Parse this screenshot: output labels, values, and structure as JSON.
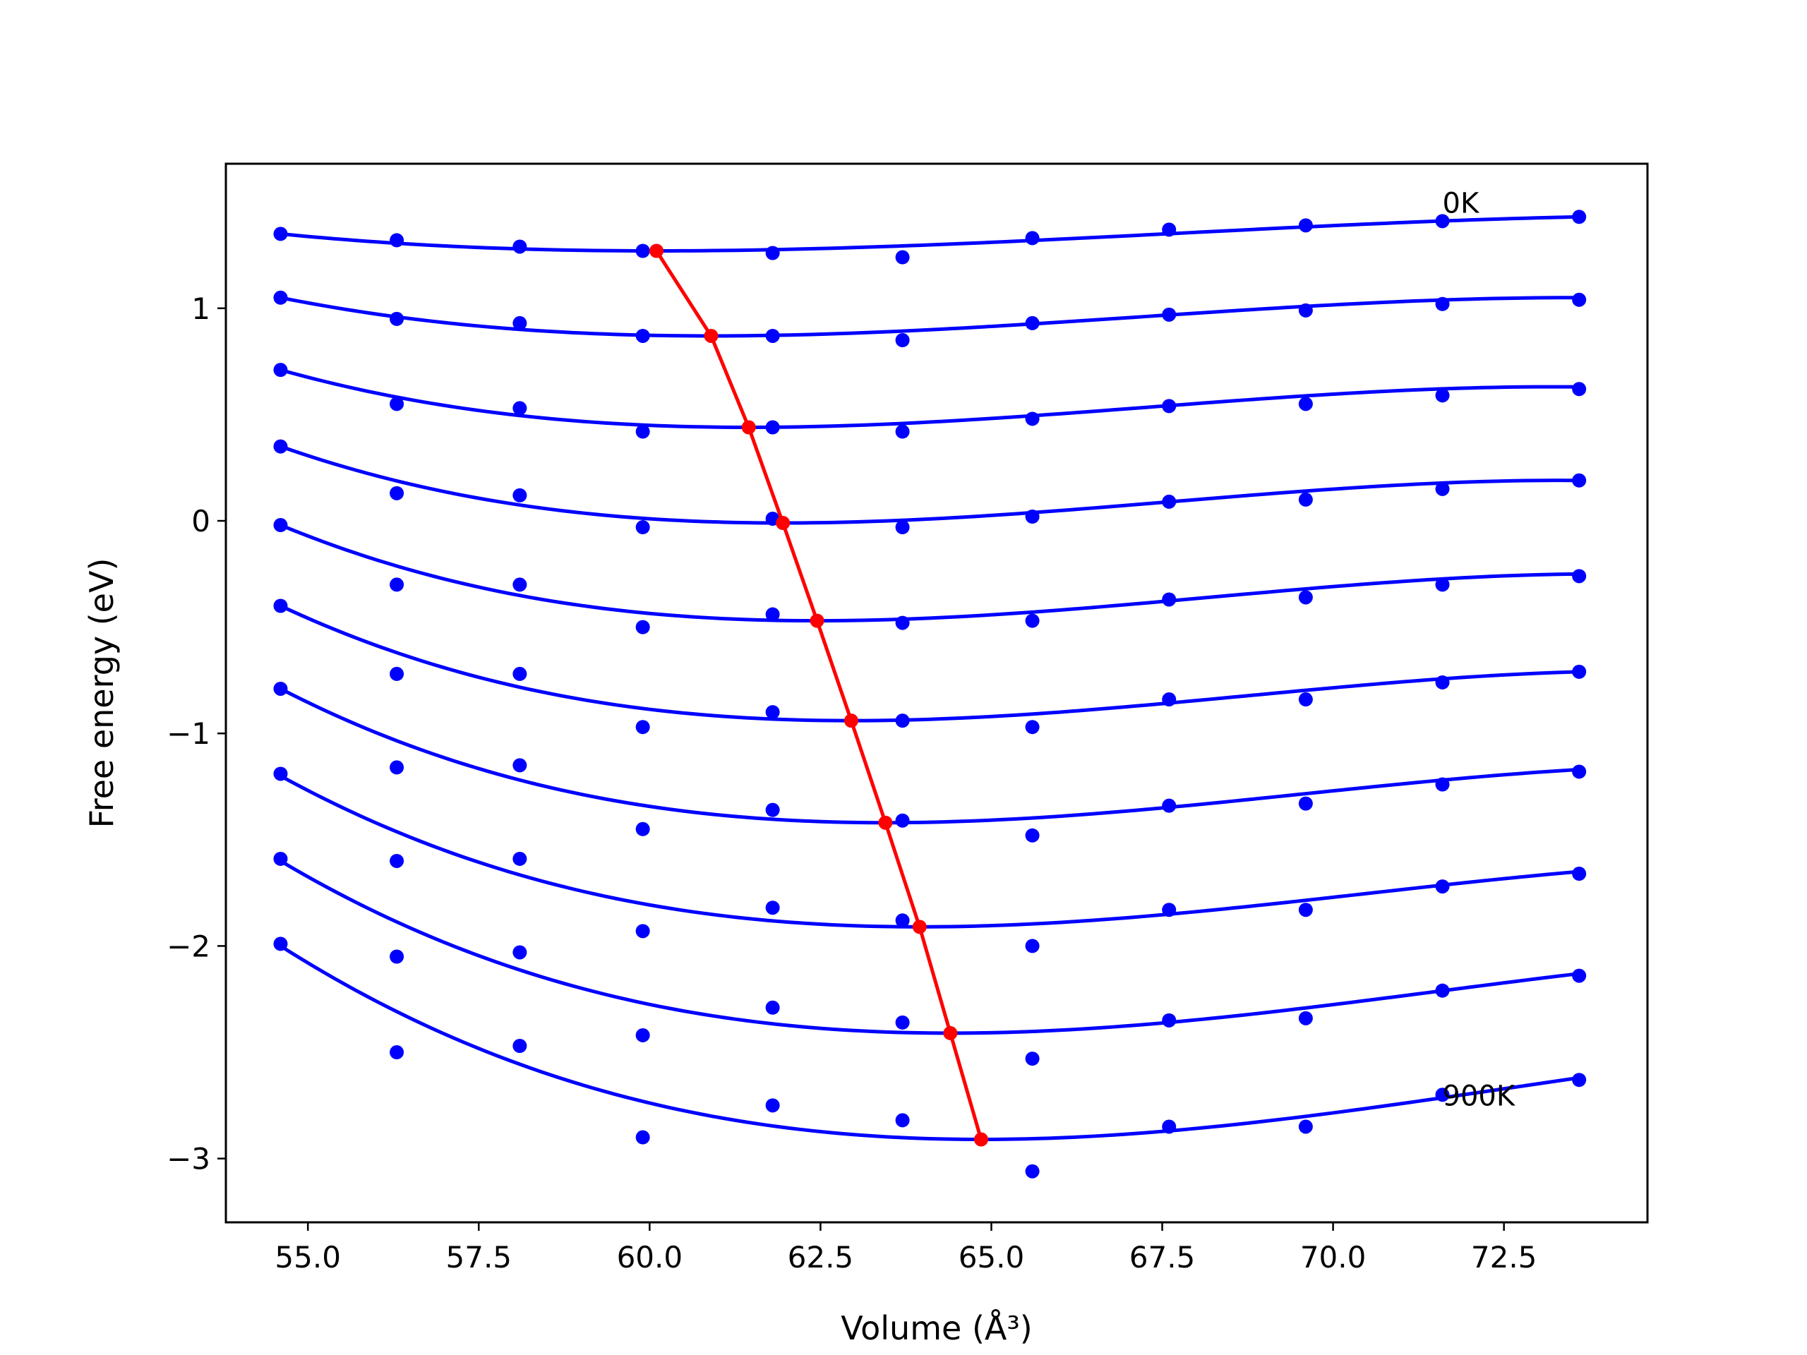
{
  "chart_data": {
    "type": "line",
    "title": "",
    "xlabel": "Volume (Å³)",
    "ylabel": "Free energy (eV)",
    "xlim": [
      53.8,
      74.6
    ],
    "ylim": [
      -3.3,
      1.68
    ],
    "xticks": [
      55.0,
      57.5,
      60.0,
      62.5,
      65.0,
      67.5,
      70.0,
      72.5
    ],
    "xtick_labels": [
      "55.0",
      "57.5",
      "60.0",
      "62.5",
      "65.0",
      "67.5",
      "70.0",
      "72.5"
    ],
    "yticks": [
      1,
      0,
      -1,
      -2,
      -3
    ],
    "ytick_labels": [
      "1",
      "0",
      "−1",
      "−2",
      "−3"
    ],
    "grid": false,
    "legend": "none",
    "colors": {
      "points": "#0000ff",
      "fit": "#0000ff",
      "minima": "#ff0000"
    },
    "annotations": [
      {
        "text": "0K",
        "x": 71.6,
        "y": 1.45
      },
      {
        "text": "900K",
        "x": 71.6,
        "y": -2.75
      }
    ],
    "volumes": [
      54.6,
      56.3,
      58.1,
      59.9,
      61.8,
      63.7,
      65.6,
      67.6,
      69.6,
      71.6,
      73.6
    ],
    "series": [
      {
        "points": [
          1.35,
          1.32,
          1.29,
          1.27,
          1.26,
          1.24,
          1.33,
          1.37,
          1.39,
          1.41,
          1.43
        ],
        "fit": {
          "min_x": 60.1,
          "min_y": 1.27,
          "left": 1.35,
          "right": 1.43
        }
      },
      {
        "points": [
          1.05,
          0.95,
          0.93,
          0.87,
          0.87,
          0.85,
          0.93,
          0.97,
          0.99,
          1.02,
          1.04
        ],
        "fit": {
          "min_x": 60.9,
          "min_y": 0.87,
          "left": 1.05,
          "right": 1.05
        }
      },
      {
        "points": [
          0.71,
          0.55,
          0.53,
          0.42,
          0.44,
          0.42,
          0.48,
          0.54,
          0.55,
          0.59,
          0.62
        ],
        "fit": {
          "min_x": 61.45,
          "min_y": 0.44,
          "left": 0.71,
          "right": 0.63
        }
      },
      {
        "points": [
          0.35,
          0.13,
          0.12,
          -0.03,
          0.01,
          -0.03,
          0.02,
          0.09,
          0.1,
          0.15,
          0.19
        ],
        "fit": {
          "min_x": 61.95,
          "min_y": -0.01,
          "left": 0.35,
          "right": 0.19
        }
      },
      {
        "points": [
          -0.02,
          -0.3,
          -0.3,
          -0.5,
          -0.44,
          -0.48,
          -0.47,
          -0.37,
          -0.36,
          -0.3,
          -0.26
        ],
        "fit": {
          "min_x": 62.45,
          "min_y": -0.47,
          "left": -0.02,
          "right": -0.25
        }
      },
      {
        "points": [
          -0.4,
          -0.72,
          -0.72,
          -0.97,
          -0.9,
          -0.94,
          -0.97,
          -0.84,
          -0.84,
          -0.76,
          -0.71
        ],
        "fit": {
          "min_x": 62.95,
          "min_y": -0.94,
          "left": -0.4,
          "right": -0.71
        }
      },
      {
        "points": [
          -0.79,
          -1.16,
          -1.15,
          -1.45,
          -1.36,
          -1.41,
          -1.48,
          -1.34,
          -1.33,
          -1.24,
          -1.18
        ],
        "fit": {
          "min_x": 63.45,
          "min_y": -1.42,
          "left": -0.79,
          "right": -1.17
        }
      },
      {
        "points": [
          -1.19,
          -1.6,
          -1.59,
          -1.93,
          -1.82,
          -1.88,
          -2.0,
          -1.83,
          -1.83,
          -1.72,
          -1.66
        ],
        "fit": {
          "min_x": 63.95,
          "min_y": -1.91,
          "left": -1.2,
          "right": -1.65
        }
      },
      {
        "points": [
          -1.59,
          -2.05,
          -2.03,
          -2.42,
          -2.29,
          -2.36,
          -2.53,
          -2.35,
          -2.34,
          -2.21,
          -2.14
        ],
        "fit": {
          "min_x": 64.4,
          "min_y": -2.41,
          "left": -1.6,
          "right": -2.13
        }
      },
      {
        "points": [
          -1.99,
          -2.5,
          -2.47,
          -2.9,
          -2.75,
          -2.82,
          -3.06,
          -2.85,
          -2.85,
          -2.7,
          -2.63
        ],
        "fit": {
          "min_x": 64.85,
          "min_y": -2.91,
          "left": -2.0,
          "right": -2.62
        }
      }
    ],
    "minima": {
      "x": [
        60.1,
        60.9,
        61.45,
        61.95,
        62.45,
        62.95,
        63.45,
        63.95,
        64.4,
        64.85
      ],
      "y": [
        1.27,
        0.87,
        0.44,
        -0.01,
        -0.47,
        -0.94,
        -1.42,
        -1.91,
        -2.41,
        -2.91
      ]
    }
  }
}
